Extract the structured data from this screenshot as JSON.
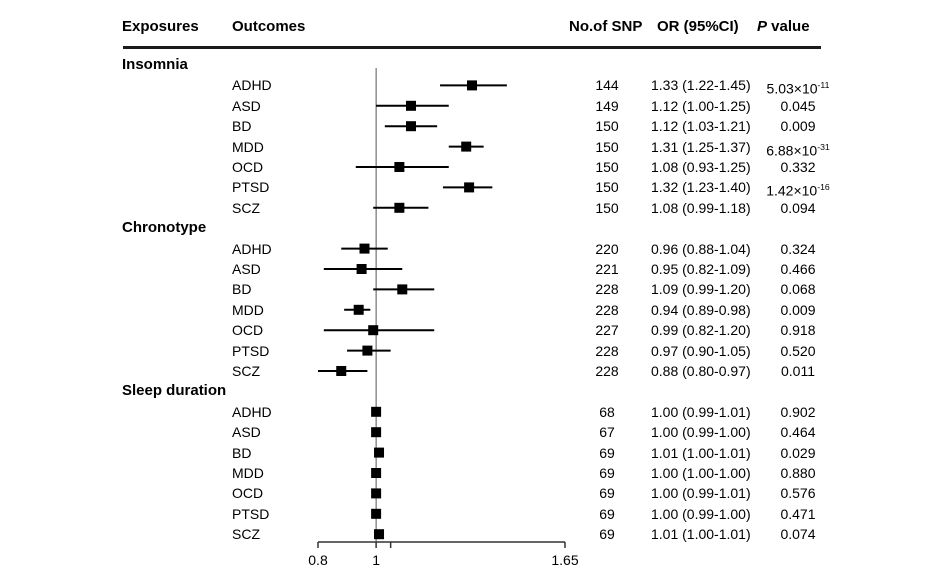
{
  "header": {
    "exposures": "Exposures",
    "outcomes": "Outcomes",
    "snp": "No.of SNP",
    "or": "OR (95%CI)",
    "p_italic": "P",
    "p_rest": " value"
  },
  "chart_data": {
    "type": "forest",
    "x_axis": {
      "min": 0.8,
      "max": 1.65,
      "ref_line": 1.0,
      "ticks": [
        {
          "v": 0.8,
          "label": "0.8"
        },
        {
          "v": 1.0,
          "label": "1"
        },
        {
          "v": 1.05,
          "label": ""
        },
        {
          "v": 1.65,
          "label": "1.65"
        }
      ]
    },
    "groups": [
      {
        "exposure": "Insomnia",
        "rows": [
          {
            "outcome": "ADHD",
            "snp": "144",
            "or": 1.33,
            "lo": 1.22,
            "hi": 1.45,
            "or_text": "1.33 (1.22-1.45)",
            "p": "5.03×10",
            "p_sup": "-11"
          },
          {
            "outcome": "ASD",
            "snp": "149",
            "or": 1.12,
            "lo": 1.0,
            "hi": 1.25,
            "or_text": "1.12 (1.00-1.25)",
            "p": "0.045",
            "p_sup": ""
          },
          {
            "outcome": "BD",
            "snp": "150",
            "or": 1.12,
            "lo": 1.03,
            "hi": 1.21,
            "or_text": "1.12 (1.03-1.21)",
            "p": "0.009",
            "p_sup": ""
          },
          {
            "outcome": "MDD",
            "snp": "150",
            "or": 1.31,
            "lo": 1.25,
            "hi": 1.37,
            "or_text": "1.31 (1.25-1.37)",
            "p": "6.88×10",
            "p_sup": "-31"
          },
          {
            "outcome": "OCD",
            "snp": "150",
            "or": 1.08,
            "lo": 0.93,
            "hi": 1.25,
            "or_text": "1.08 (0.93-1.25)",
            "p": "0.332",
            "p_sup": ""
          },
          {
            "outcome": "PTSD",
            "snp": "150",
            "or": 1.32,
            "lo": 1.23,
            "hi": 1.4,
            "or_text": "1.32 (1.23-1.40)",
            "p": "1.42×10",
            "p_sup": "-16"
          },
          {
            "outcome": "SCZ",
            "snp": "150",
            "or": 1.08,
            "lo": 0.99,
            "hi": 1.18,
            "or_text": "1.08 (0.99-1.18)",
            "p": "0.094",
            "p_sup": ""
          }
        ]
      },
      {
        "exposure": "Chronotype",
        "rows": [
          {
            "outcome": "ADHD",
            "snp": "220",
            "or": 0.96,
            "lo": 0.88,
            "hi": 1.04,
            "or_text": "0.96 (0.88-1.04)",
            "p": "0.324",
            "p_sup": ""
          },
          {
            "outcome": "ASD",
            "snp": "221",
            "or": 0.95,
            "lo": 0.82,
            "hi": 1.09,
            "or_text": "0.95 (0.82-1.09)",
            "p": "0.466",
            "p_sup": ""
          },
          {
            "outcome": "BD",
            "snp": "228",
            "or": 1.09,
            "lo": 0.99,
            "hi": 1.2,
            "or_text": "1.09 (0.99-1.20)",
            "p": "0.068",
            "p_sup": ""
          },
          {
            "outcome": "MDD",
            "snp": "228",
            "or": 0.94,
            "lo": 0.89,
            "hi": 0.98,
            "or_text": "0.94 (0.89-0.98)",
            "p": "0.009",
            "p_sup": ""
          },
          {
            "outcome": "OCD",
            "snp": "227",
            "or": 0.99,
            "lo": 0.82,
            "hi": 1.2,
            "or_text": "0.99 (0.82-1.20)",
            "p": "0.918",
            "p_sup": ""
          },
          {
            "outcome": "PTSD",
            "snp": "228",
            "or": 0.97,
            "lo": 0.9,
            "hi": 1.05,
            "or_text": "0.97 (0.90-1.05)",
            "p": "0.520",
            "p_sup": ""
          },
          {
            "outcome": "SCZ",
            "snp": "228",
            "or": 0.88,
            "lo": 0.8,
            "hi": 0.97,
            "or_text": "0.88 (0.80-0.97)",
            "p": "0.011",
            "p_sup": ""
          }
        ]
      },
      {
        "exposure": "Sleep duration",
        "rows": [
          {
            "outcome": "ADHD",
            "snp": "68",
            "or": 1.0,
            "lo": 0.99,
            "hi": 1.01,
            "or_text": "1.00 (0.99-1.01)",
            "p": "0.902",
            "p_sup": ""
          },
          {
            "outcome": "ASD",
            "snp": "67",
            "or": 1.0,
            "lo": 0.99,
            "hi": 1.0,
            "or_text": "1.00 (0.99-1.00)",
            "p": "0.464",
            "p_sup": ""
          },
          {
            "outcome": "BD",
            "snp": "69",
            "or": 1.01,
            "lo": 1.0,
            "hi": 1.01,
            "or_text": "1.01 (1.00-1.01)",
            "p": "0.029",
            "p_sup": ""
          },
          {
            "outcome": "MDD",
            "snp": "69",
            "or": 1.0,
            "lo": 1.0,
            "hi": 1.0,
            "or_text": "1.00 (1.00-1.00)",
            "p": "0.880",
            "p_sup": ""
          },
          {
            "outcome": "OCD",
            "snp": "69",
            "or": 1.0,
            "lo": 0.99,
            "hi": 1.01,
            "or_text": "1.00 (0.99-1.01)",
            "p": "0.576",
            "p_sup": ""
          },
          {
            "outcome": "PTSD",
            "snp": "69",
            "or": 1.0,
            "lo": 0.99,
            "hi": 1.0,
            "or_text": "1.00 (0.99-1.00)",
            "p": "0.471",
            "p_sup": ""
          },
          {
            "outcome": "SCZ",
            "snp": "69",
            "or": 1.01,
            "lo": 1.0,
            "hi": 1.01,
            "or_text": "1.01 (1.00-1.01)",
            "p": "0.074",
            "p_sup": ""
          }
        ]
      }
    ],
    "colors": {
      "marker": "#000000",
      "ci_line": "#000000",
      "ref_line": "#555555",
      "axis": "#333333"
    }
  }
}
